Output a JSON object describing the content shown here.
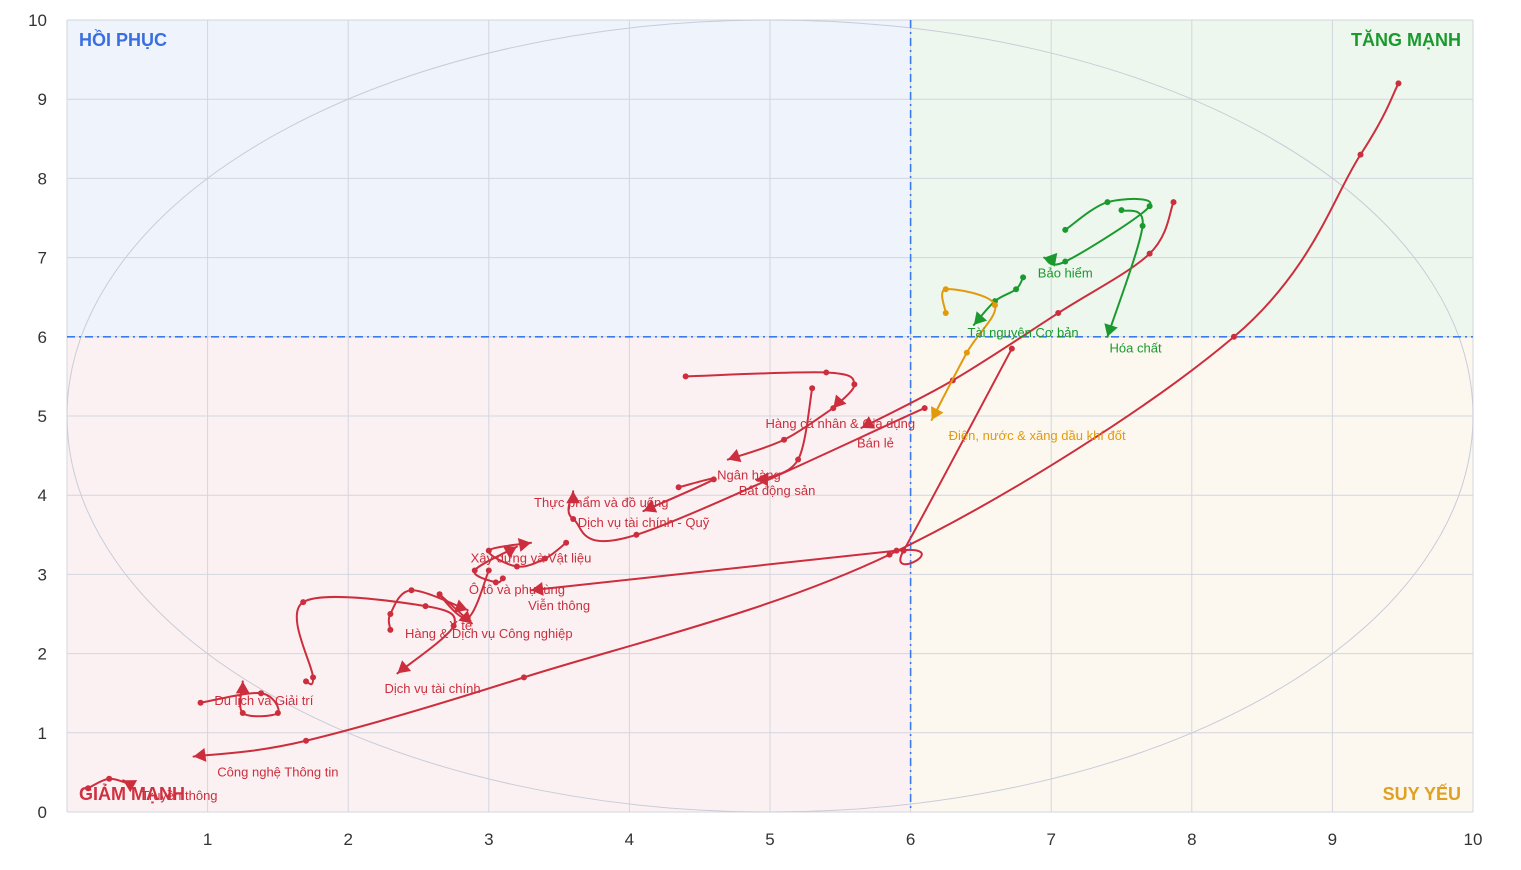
{
  "chart_data": {
    "type": "line",
    "xlim": [
      0,
      10
    ],
    "ylim": [
      0,
      10
    ],
    "x_ticks": [
      "1",
      "2",
      "3",
      "4",
      "5",
      "6",
      "7",
      "8",
      "9",
      "10"
    ],
    "y_ticks": [
      "0",
      "1",
      "2",
      "3",
      "4",
      "5",
      "6",
      "7",
      "8",
      "9",
      "10"
    ],
    "grid": true,
    "center": {
      "x": 6,
      "y": 6
    },
    "quadrants": [
      {
        "label": "HỒI PHỤC",
        "position": "top-left",
        "color": "#3b6fe0",
        "fill": "#eef3fc"
      },
      {
        "label": "TĂNG MẠNH",
        "position": "top-right",
        "color": "#1a9a2e",
        "fill": "#eef7ee"
      },
      {
        "label": "SUY YẾU",
        "position": "bottom-right",
        "color": "#e0a020",
        "fill": "#fcf8f0"
      },
      {
        "label": "GIẢM MẠNH",
        "position": "bottom-left",
        "color": "#d03040",
        "fill": "#fcf1f2"
      }
    ],
    "colors": {
      "red": "#cc2e3d",
      "green": "#1a9a2e",
      "orange": "#e29a0c",
      "divider": "#3b7bf0",
      "ellipse": "#c8ccd8"
    },
    "series": [
      {
        "name": "Truyền thông",
        "color": "red",
        "label_at": [
          0.8,
          0.15
        ],
        "points": [
          [
            0.15,
            0.3
          ],
          [
            0.3,
            0.42
          ],
          [
            0.45,
            0.35
          ],
          [
            0.4,
            0.4
          ]
        ]
      },
      {
        "name": "Công nghệ Thông tin",
        "color": "red",
        "label_at": [
          1.5,
          0.45
        ],
        "points": [
          [
            9.47,
            9.2
          ],
          [
            9.2,
            8.3
          ],
          [
            8.3,
            6.0
          ],
          [
            5.85,
            3.25
          ],
          [
            3.25,
            1.7
          ],
          [
            1.7,
            0.9
          ],
          [
            0.9,
            0.7
          ]
        ]
      },
      {
        "name": "Du lịch và Giải trí",
        "color": "red",
        "label_at": [
          1.4,
          1.35
        ],
        "points": [
          [
            0.95,
            1.38
          ],
          [
            1.38,
            1.5
          ],
          [
            1.5,
            1.25
          ],
          [
            1.25,
            1.25
          ],
          [
            1.25,
            1.65
          ]
        ]
      },
      {
        "name": "Dịch vụ tài chính",
        "color": "red",
        "label_at": [
          2.6,
          1.5
        ],
        "points": [
          [
            1.7,
            1.65
          ],
          [
            1.75,
            1.7
          ],
          [
            1.68,
            2.65
          ],
          [
            2.55,
            2.6
          ],
          [
            2.75,
            2.35
          ],
          [
            2.35,
            1.75
          ]
        ]
      },
      {
        "name": "Y tế",
        "color": "red",
        "label_at": [
          2.8,
          2.3
        ],
        "points": [
          [
            2.3,
            2.3
          ],
          [
            2.3,
            2.5
          ],
          [
            2.45,
            2.8
          ],
          [
            2.85,
            2.55
          ]
        ]
      },
      {
        "name": "Hàng & Dịch vụ Công nghiệp",
        "color": "red",
        "label_at": [
          3.0,
          2.2
        ],
        "points": [
          [
            3.0,
            3.05
          ],
          [
            2.85,
            2.45
          ],
          [
            2.65,
            2.75
          ],
          [
            2.88,
            2.38
          ]
        ]
      },
      {
        "name": "Viễn thông",
        "color": "red",
        "label_at": [
          3.5,
          2.55
        ],
        "points": [
          [
            6.72,
            5.85
          ],
          [
            6.72,
            5.85
          ],
          [
            5.95,
            3.3
          ],
          [
            5.9,
            3.3
          ],
          [
            3.3,
            2.8
          ]
        ]
      },
      {
        "name": "Ô tô và phụ tùng",
        "color": "red",
        "label_at": [
          3.2,
          2.75
        ],
        "points": [
          [
            3.1,
            2.95
          ],
          [
            3.05,
            2.9
          ],
          [
            2.9,
            3.05
          ],
          [
            3.2,
            3.35
          ]
        ]
      },
      {
        "name": "Xây dựng và Vật liệu",
        "color": "red",
        "label_at": [
          3.3,
          3.15
        ],
        "points": [
          [
            3.55,
            3.4
          ],
          [
            3.4,
            3.2
          ],
          [
            3.2,
            3.1
          ],
          [
            3.0,
            3.3
          ],
          [
            3.3,
            3.4
          ]
        ]
      },
      {
        "name": "Dịch vụ tài chính - Quỹ",
        "color": "red",
        "label_at": [
          4.1,
          3.6
        ],
        "points": [
          [
            6.1,
            5.1
          ],
          [
            6.1,
            5.1
          ],
          [
            4.05,
            3.5
          ],
          [
            4.05,
            3.5
          ],
          [
            3.6,
            3.7
          ],
          [
            3.6,
            4.05
          ]
        ]
      },
      {
        "name": "Thực phẩm và đồ uống",
        "color": "red",
        "label_at": [
          3.8,
          3.85
        ],
        "points": [
          [
            4.35,
            4.1
          ],
          [
            4.6,
            4.2
          ],
          [
            4.1,
            3.8
          ]
        ]
      },
      {
        "name": "Bất động sản",
        "color": "red",
        "label_at": [
          5.05,
          4.0
        ],
        "points": [
          [
            5.3,
            5.35
          ],
          [
            5.2,
            4.45
          ],
          [
            4.95,
            4.2
          ],
          [
            4.9,
            4.2
          ]
        ]
      },
      {
        "name": "Ngân hàng",
        "color": "red",
        "label_at": [
          4.85,
          4.2
        ],
        "points": [
          [
            5.45,
            5.1
          ],
          [
            5.1,
            4.7
          ],
          [
            4.7,
            4.45
          ]
        ]
      },
      {
        "name": "Bán lẻ",
        "color": "red",
        "label_at": [
          5.75,
          4.6
        ],
        "points": [
          [
            7.87,
            7.7
          ],
          [
            7.7,
            7.05
          ],
          [
            7.05,
            6.3
          ],
          [
            6.3,
            5.45
          ],
          [
            5.65,
            4.85
          ]
        ]
      },
      {
        "name": "Hàng cá nhân & Gia dụng",
        "color": "red",
        "label_at": [
          5.5,
          4.85
        ],
        "points": [
          [
            4.4,
            5.5
          ],
          [
            5.4,
            5.55
          ],
          [
            5.6,
            5.4
          ],
          [
            5.45,
            5.1
          ]
        ]
      },
      {
        "name": "Bảo hiểm",
        "color": "green",
        "label_at": [
          7.1,
          6.75
        ],
        "points": [
          [
            7.1,
            7.35
          ],
          [
            7.4,
            7.7
          ],
          [
            7.7,
            7.65
          ],
          [
            7.1,
            6.95
          ],
          [
            6.95,
            7.0
          ]
        ]
      },
      {
        "name": "Tài nguyên Cơ bản",
        "color": "green",
        "label_at": [
          6.8,
          6.0
        ],
        "points": [
          [
            6.8,
            6.75
          ],
          [
            6.75,
            6.6
          ],
          [
            6.6,
            6.45
          ],
          [
            6.45,
            6.15
          ]
        ]
      },
      {
        "name": "Hóa chất",
        "color": "green",
        "label_at": [
          7.6,
          5.8
        ],
        "points": [
          [
            7.5,
            7.6
          ],
          [
            7.65,
            7.4
          ],
          [
            7.4,
            6.0
          ]
        ]
      },
      {
        "name": "Điện, nước & xăng dầu khí đốt",
        "color": "orange",
        "label_at": [
          6.9,
          4.7
        ],
        "points": [
          [
            6.25,
            6.3
          ],
          [
            6.25,
            6.6
          ],
          [
            6.6,
            6.4
          ],
          [
            6.4,
            5.8
          ],
          [
            6.15,
            4.95
          ]
        ]
      }
    ]
  }
}
